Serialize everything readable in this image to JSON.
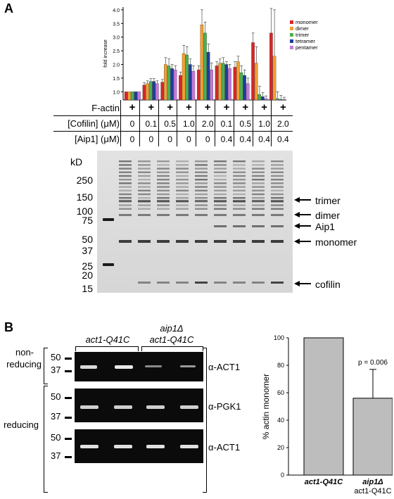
{
  "panel_a": {
    "letter": "A",
    "chart_data": {
      "type": "bar",
      "ylabel": "fold increase",
      "y_ticks": [
        "1.0",
        "1.5",
        "2.0",
        "2.5",
        "3.0",
        "3.5",
        "4.0"
      ],
      "ylim": [
        0.7,
        4.1
      ],
      "groups": 9,
      "series": [
        {
          "name": "monomer",
          "color": "#d62728",
          "values": [
            1.0,
            1.25,
            1.35,
            1.6,
            1.8,
            1.95,
            1.9,
            2.8,
            3.15
          ],
          "errors": [
            0,
            0.08,
            0.1,
            0.12,
            0.15,
            0.15,
            0.2,
            0.35,
            0.9
          ]
        },
        {
          "name": "dimer",
          "color": "#f0a030",
          "values": [
            1.0,
            1.3,
            2.0,
            2.4,
            3.45,
            2.05,
            2.1,
            2.05,
            2.3
          ],
          "errors": [
            0,
            0.1,
            0.25,
            0.3,
            0.55,
            0.15,
            0.2,
            0.6,
            1.7
          ]
        },
        {
          "name": "trimer",
          "color": "#4caf50",
          "values": [
            1.0,
            1.38,
            1.95,
            2.35,
            3.15,
            2.05,
            1.7,
            0.9,
            0.75
          ],
          "errors": [
            0,
            0.1,
            0.25,
            0.3,
            0.4,
            0.2,
            0.25,
            0.3,
            0.25
          ]
        },
        {
          "name": "tetramer",
          "color": "#1f3d9a",
          "values": [
            1.0,
            1.38,
            1.85,
            2.0,
            2.45,
            2.0,
            1.6,
            0.82,
            0.72
          ],
          "errors": [
            0,
            0.1,
            0.15,
            0.2,
            0.3,
            0.1,
            0.2,
            0.15,
            0.15
          ]
        },
        {
          "name": "pentamer",
          "color": "#c678d8",
          "values": [
            1.0,
            1.3,
            1.8,
            1.75,
            1.8,
            1.85,
            1.3,
            0.75,
            0.7
          ],
          "errors": [
            0,
            0.1,
            0.15,
            0.2,
            0.25,
            0.15,
            0.2,
            0.1,
            0.1
          ]
        }
      ]
    },
    "conditions": {
      "factin_label": "F-actin",
      "factin_values": [
        "+",
        "+",
        "+",
        "+",
        "+",
        "+",
        "+",
        "+",
        "+"
      ],
      "cofilin_label": "[Cofilin] (μM)",
      "cofilin_values": [
        "0",
        "0.1",
        "0.5",
        "1.0",
        "2.0",
        "0.1",
        "0.5",
        "1.0",
        "2.0"
      ],
      "aip1_label": "[Aip1] (μM)",
      "aip1_values": [
        "0",
        "0",
        "0",
        "0",
        "0",
        "0.4",
        "0.4",
        "0.4",
        "0.4"
      ]
    },
    "gel": {
      "unit": "kD",
      "markers": [
        "250",
        "150",
        "100",
        "75",
        "50",
        "37",
        "25",
        "20",
        "15"
      ],
      "band_labels": [
        "trimer",
        "dimer",
        "Aip1",
        "monomer",
        "cofilin"
      ]
    }
  },
  "panel_b": {
    "letter": "B",
    "strain_1": "act1-Q41C",
    "strain_2_line1": "aip1Δ",
    "strain_2_line2": "act1-Q41C",
    "nonreducing_line1": "non-",
    "nonreducing_line2": "reducing",
    "reducing_label": "reducing",
    "blots": [
      {
        "markers": [
          "50",
          "37"
        ],
        "antibody": "α-ACT1"
      },
      {
        "markers": [
          "50",
          "37"
        ],
        "antibody": "α-PGK1"
      },
      {
        "markers": [
          "50",
          "37"
        ],
        "antibody": "α-ACT1"
      }
    ],
    "bar_chart": {
      "type": "bar",
      "ylabel": "% actin monomer",
      "y_ticks": [
        "0",
        "20",
        "40",
        "60",
        "80",
        "100"
      ],
      "ylim": [
        0,
        100
      ],
      "categories": [
        "act1-Q41C",
        "aip1Δ act1-Q41C"
      ],
      "cat_1": "act1-Q41C",
      "cat_2_line1": "aip1Δ",
      "cat_2_line2": "act1-Q41C",
      "values": [
        100,
        56
      ],
      "errors": [
        0,
        21
      ],
      "annotation": "p = 0.006",
      "bar_color": "#bdbdbd"
    }
  }
}
